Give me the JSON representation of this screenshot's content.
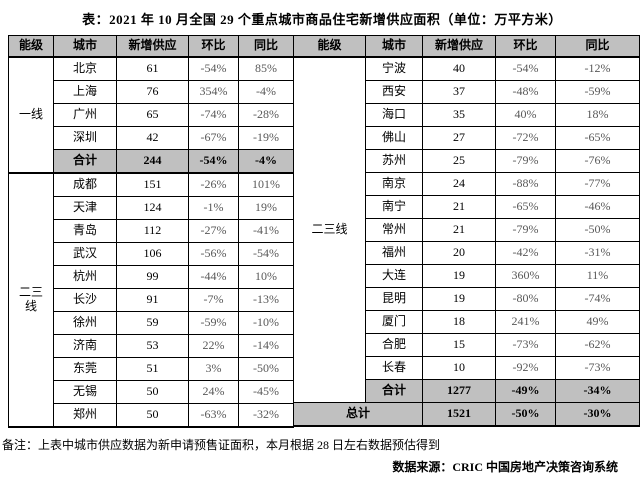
{
  "title": "表：2021 年 10 月全国 29 个重点城市商品住宅新增供应面积（单位：万平方米）",
  "columns": [
    "能级",
    "城市",
    "新增供应",
    "环比",
    "同比"
  ],
  "left_table": {
    "groups": [
      {
        "tier": "一线",
        "rows": [
          {
            "city": "北京",
            "supply": "61",
            "mom": "-54%",
            "yoy": "85%"
          },
          {
            "city": "上海",
            "supply": "76",
            "mom": "354%",
            "yoy": "-4%"
          },
          {
            "city": "广州",
            "supply": "65",
            "mom": "-74%",
            "yoy": "-28%"
          },
          {
            "city": "深圳",
            "supply": "42",
            "mom": "-67%",
            "yoy": "-19%"
          },
          {
            "city": "合计",
            "supply": "244",
            "mom": "-54%",
            "yoy": "-4%",
            "total": true
          }
        ]
      },
      {
        "tier": "二三线",
        "thick_divider": true,
        "rows": [
          {
            "city": "成都",
            "supply": "151",
            "mom": "-26%",
            "yoy": "101%"
          },
          {
            "city": "天津",
            "supply": "124",
            "mom": "-1%",
            "yoy": "19%"
          },
          {
            "city": "青岛",
            "supply": "112",
            "mom": "-27%",
            "yoy": "-41%"
          },
          {
            "city": "武汉",
            "supply": "106",
            "mom": "-56%",
            "yoy": "-54%"
          },
          {
            "city": "杭州",
            "supply": "99",
            "mom": "-44%",
            "yoy": "10%"
          },
          {
            "city": "长沙",
            "supply": "91",
            "mom": "-7%",
            "yoy": "-13%"
          },
          {
            "city": "徐州",
            "supply": "59",
            "mom": "-59%",
            "yoy": "-10%"
          },
          {
            "city": "济南",
            "supply": "53",
            "mom": "22%",
            "yoy": "-14%"
          },
          {
            "city": "东莞",
            "supply": "51",
            "mom": "3%",
            "yoy": "-50%"
          },
          {
            "city": "无锡",
            "supply": "50",
            "mom": "24%",
            "yoy": "-45%"
          },
          {
            "city": "郑州",
            "supply": "50",
            "mom": "-63%",
            "yoy": "-32%"
          }
        ]
      }
    ]
  },
  "right_table": {
    "groups": [
      {
        "tier": "二三线",
        "rows": [
          {
            "city": "宁波",
            "supply": "40",
            "mom": "-54%",
            "yoy": "-12%"
          },
          {
            "city": "西安",
            "supply": "37",
            "mom": "-48%",
            "yoy": "-59%"
          },
          {
            "city": "海口",
            "supply": "35",
            "mom": "40%",
            "yoy": "18%"
          },
          {
            "city": "佛山",
            "supply": "27",
            "mom": "-72%",
            "yoy": "-65%"
          },
          {
            "city": "苏州",
            "supply": "25",
            "mom": "-79%",
            "yoy": "-76%"
          },
          {
            "city": "南京",
            "supply": "24",
            "mom": "-88%",
            "yoy": "-77%"
          },
          {
            "city": "南宁",
            "supply": "21",
            "mom": "-65%",
            "yoy": "-46%"
          },
          {
            "city": "常州",
            "supply": "21",
            "mom": "-79%",
            "yoy": "-50%"
          },
          {
            "city": "福州",
            "supply": "20",
            "mom": "-42%",
            "yoy": "-31%"
          },
          {
            "city": "大连",
            "supply": "19",
            "mom": "360%",
            "yoy": "11%"
          },
          {
            "city": "昆明",
            "supply": "19",
            "mom": "-80%",
            "yoy": "-74%"
          },
          {
            "city": "厦门",
            "supply": "18",
            "mom": "241%",
            "yoy": "49%"
          },
          {
            "city": "合肥",
            "supply": "15",
            "mom": "-73%",
            "yoy": "-62%"
          },
          {
            "city": "长春",
            "supply": "10",
            "mom": "-92%",
            "yoy": "-73%"
          },
          {
            "city": "合计",
            "supply": "1277",
            "mom": "-49%",
            "yoy": "-34%",
            "total": true
          }
        ]
      }
    ],
    "grand_total": {
      "label": "总计",
      "supply": "1521",
      "mom": "-50%",
      "yoy": "-30%"
    }
  },
  "footnote": "备注：上表中城市供应数据为新申请预售证面积，本月根据 28 日左右数据预估得到",
  "source": "数据来源：CRIC 中国房地产决策咨询系统",
  "colors": {
    "header_bg": "#c0c0c0",
    "total_row_bg": "#c0c0c0",
    "border": "#000000",
    "percent_text": "#595959",
    "text": "#000000",
    "background": "#ffffff"
  }
}
